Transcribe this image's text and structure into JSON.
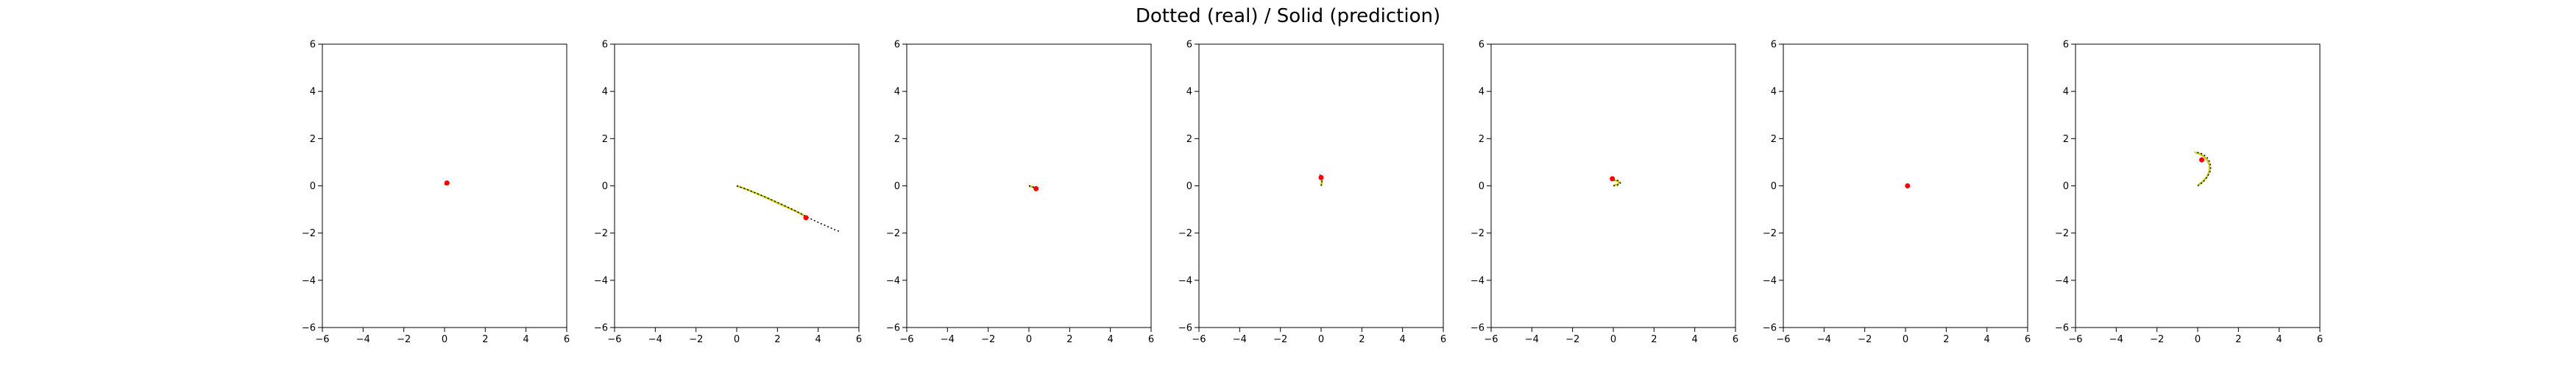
{
  "title": "Dotted (real) / Solid (prediction)",
  "colors": {
    "real": "#000000",
    "prediction": "#c8c800",
    "start": "#ff0000"
  },
  "chart_data": [
    {
      "type": "line",
      "xlim": [
        -6,
        6
      ],
      "ylim": [
        -6,
        6
      ],
      "xticks": [
        "−6",
        "−4",
        "−2",
        "0",
        "2",
        "4",
        "6"
      ],
      "yticks": [
        "−6",
        "−4",
        "−2",
        "0",
        "2",
        "4",
        "6"
      ],
      "start": [
        0.12,
        0.12
      ],
      "real": [
        [
          0.0,
          0.05
        ],
        [
          0.05,
          0.08
        ],
        [
          0.1,
          0.1
        ],
        [
          0.14,
          0.13
        ],
        [
          0.18,
          0.15
        ]
      ],
      "prediction": [
        [
          0.02,
          0.06
        ],
        [
          0.07,
          0.09
        ],
        [
          0.12,
          0.11
        ],
        [
          0.16,
          0.14
        ]
      ]
    },
    {
      "type": "line",
      "xlim": [
        -6,
        6
      ],
      "ylim": [
        -6,
        6
      ],
      "xticks": [
        "−6",
        "−4",
        "−2",
        "0",
        "2",
        "4",
        "6"
      ],
      "yticks": [
        "−6",
        "−4",
        "−2",
        "0",
        "2",
        "4",
        "6"
      ],
      "start": [
        3.4,
        -1.35
      ],
      "real": [
        [
          0.0,
          0.0
        ],
        [
          0.4,
          -0.12
        ],
        [
          0.8,
          -0.26
        ],
        [
          1.2,
          -0.4
        ],
        [
          1.6,
          -0.55
        ],
        [
          2.0,
          -0.7
        ],
        [
          2.4,
          -0.86
        ],
        [
          2.8,
          -1.02
        ],
        [
          3.2,
          -1.2
        ],
        [
          3.6,
          -1.38
        ],
        [
          4.0,
          -1.55
        ],
        [
          4.4,
          -1.7
        ],
        [
          4.8,
          -1.85
        ],
        [
          5.1,
          -1.95
        ]
      ],
      "prediction": [
        [
          0.0,
          0.0
        ],
        [
          0.5,
          -0.15
        ],
        [
          1.0,
          -0.33
        ],
        [
          1.5,
          -0.52
        ],
        [
          2.0,
          -0.72
        ],
        [
          2.5,
          -0.92
        ],
        [
          3.0,
          -1.12
        ],
        [
          3.4,
          -1.3
        ]
      ]
    },
    {
      "type": "line",
      "xlim": [
        -6,
        6
      ],
      "ylim": [
        -6,
        6
      ],
      "xticks": [
        "−6",
        "−4",
        "−2",
        "0",
        "2",
        "4",
        "6"
      ],
      "yticks": [
        "−6",
        "−4",
        "−2",
        "0",
        "2",
        "4",
        "6"
      ],
      "start": [
        0.35,
        -0.12
      ],
      "real": [
        [
          0.0,
          0.0
        ],
        [
          0.1,
          -0.02
        ],
        [
          0.2,
          -0.05
        ],
        [
          0.28,
          -0.08
        ],
        [
          0.36,
          -0.12
        ],
        [
          0.42,
          -0.16
        ]
      ],
      "prediction": [
        [
          0.0,
          0.0
        ],
        [
          0.12,
          -0.03
        ],
        [
          0.24,
          -0.07
        ],
        [
          0.35,
          -0.12
        ]
      ]
    },
    {
      "type": "line",
      "xlim": [
        -6,
        6
      ],
      "ylim": [
        -6,
        6
      ],
      "xticks": [
        "−6",
        "−4",
        "−2",
        "0",
        "2",
        "4",
        "6"
      ],
      "yticks": [
        "−6",
        "−4",
        "−2",
        "0",
        "2",
        "4",
        "6"
      ],
      "start": [
        0.0,
        0.35
      ],
      "real": [
        [
          0.0,
          0.0
        ],
        [
          0.03,
          0.1
        ],
        [
          0.04,
          0.2
        ],
        [
          0.02,
          0.3
        ],
        [
          -0.02,
          0.4
        ],
        [
          -0.06,
          0.48
        ]
      ],
      "prediction": [
        [
          0.01,
          0.02
        ],
        [
          0.03,
          0.12
        ],
        [
          0.03,
          0.22
        ],
        [
          0.01,
          0.32
        ],
        [
          -0.02,
          0.4
        ]
      ]
    },
    {
      "type": "line",
      "xlim": [
        -6,
        6
      ],
      "ylim": [
        -6,
        6
      ],
      "xticks": [
        "−6",
        "−4",
        "−2",
        "0",
        "2",
        "4",
        "6"
      ],
      "yticks": [
        "−6",
        "−4",
        "−2",
        "0",
        "2",
        "4",
        "6"
      ],
      "start": [
        -0.05,
        0.3
      ],
      "real": [
        [
          0.0,
          0.0
        ],
        [
          0.2,
          0.03
        ],
        [
          0.35,
          0.12
        ],
        [
          0.25,
          0.22
        ],
        [
          0.05,
          0.25
        ],
        [
          -0.1,
          0.3
        ],
        [
          -0.2,
          0.42
        ]
      ],
      "prediction": [
        [
          0.02,
          0.02
        ],
        [
          0.2,
          0.05
        ],
        [
          0.3,
          0.13
        ],
        [
          0.2,
          0.21
        ],
        [
          0.05,
          0.24
        ],
        [
          -0.08,
          0.32
        ]
      ]
    },
    {
      "type": "line",
      "xlim": [
        -6,
        6
      ],
      "ylim": [
        -6,
        6
      ],
      "xticks": [
        "−6",
        "−4",
        "−2",
        "0",
        "2",
        "4",
        "6"
      ],
      "yticks": [
        "−6",
        "−4",
        "−2",
        "0",
        "2",
        "4",
        "6"
      ],
      "start": [
        0.1,
        0.0
      ],
      "real": [
        [
          0.0,
          0.0
        ],
        [
          0.06,
          0.01
        ],
        [
          0.1,
          0.02
        ],
        [
          0.14,
          0.0
        ]
      ],
      "prediction": [
        [
          0.02,
          0.0
        ],
        [
          0.07,
          0.01
        ],
        [
          0.12,
          0.01
        ]
      ]
    },
    {
      "type": "line",
      "xlim": [
        -6,
        6
      ],
      "ylim": [
        -6,
        6
      ],
      "xticks": [
        "−6",
        "−4",
        "−2",
        "0",
        "2",
        "4",
        "6"
      ],
      "yticks": [
        "−6",
        "−4",
        "−2",
        "0",
        "2",
        "4",
        "6"
      ],
      "start": [
        0.2,
        1.1
      ],
      "real": [
        [
          0.0,
          0.0
        ],
        [
          0.25,
          0.15
        ],
        [
          0.45,
          0.35
        ],
        [
          0.6,
          0.58
        ],
        [
          0.65,
          0.8
        ],
        [
          0.6,
          1.0
        ],
        [
          0.48,
          1.18
        ],
        [
          0.3,
          1.32
        ],
        [
          0.1,
          1.4
        ],
        [
          -0.15,
          1.43
        ]
      ],
      "prediction": [
        [
          0.03,
          0.03
        ],
        [
          0.28,
          0.2
        ],
        [
          0.48,
          0.42
        ],
        [
          0.58,
          0.65
        ],
        [
          0.58,
          0.88
        ],
        [
          0.48,
          1.08
        ],
        [
          0.3,
          1.25
        ],
        [
          0.1,
          1.36
        ],
        [
          -0.1,
          1.4
        ]
      ]
    }
  ]
}
